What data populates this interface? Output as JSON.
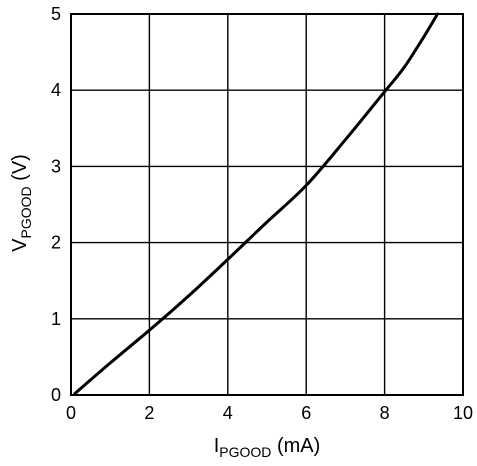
{
  "chart_data": {
    "type": "line",
    "title": "",
    "xlabel": {
      "main": "I",
      "subscript": "PGOOD",
      "unit": " (mA)"
    },
    "ylabel": {
      "main": "V",
      "subscript": "PGOOD",
      "unit": " (V)"
    },
    "xlim": [
      0,
      10
    ],
    "ylim": [
      0,
      5
    ],
    "x_ticks": [
      "0",
      "2",
      "4",
      "6",
      "8",
      "10"
    ],
    "y_ticks": [
      "0",
      "1",
      "2",
      "3",
      "4",
      "5"
    ],
    "grid": true,
    "legend": "none",
    "series": [
      {
        "color": "#000000",
        "x": [
          0.1,
          1.0,
          2.0,
          3.0,
          4.0,
          5.0,
          6.0,
          7.0,
          8.0,
          8.5,
          9.0,
          9.35
        ],
        "y": [
          0.02,
          0.42,
          0.85,
          1.3,
          1.78,
          2.27,
          2.75,
          3.35,
          3.98,
          4.3,
          4.7,
          5.0
        ]
      }
    ]
  }
}
